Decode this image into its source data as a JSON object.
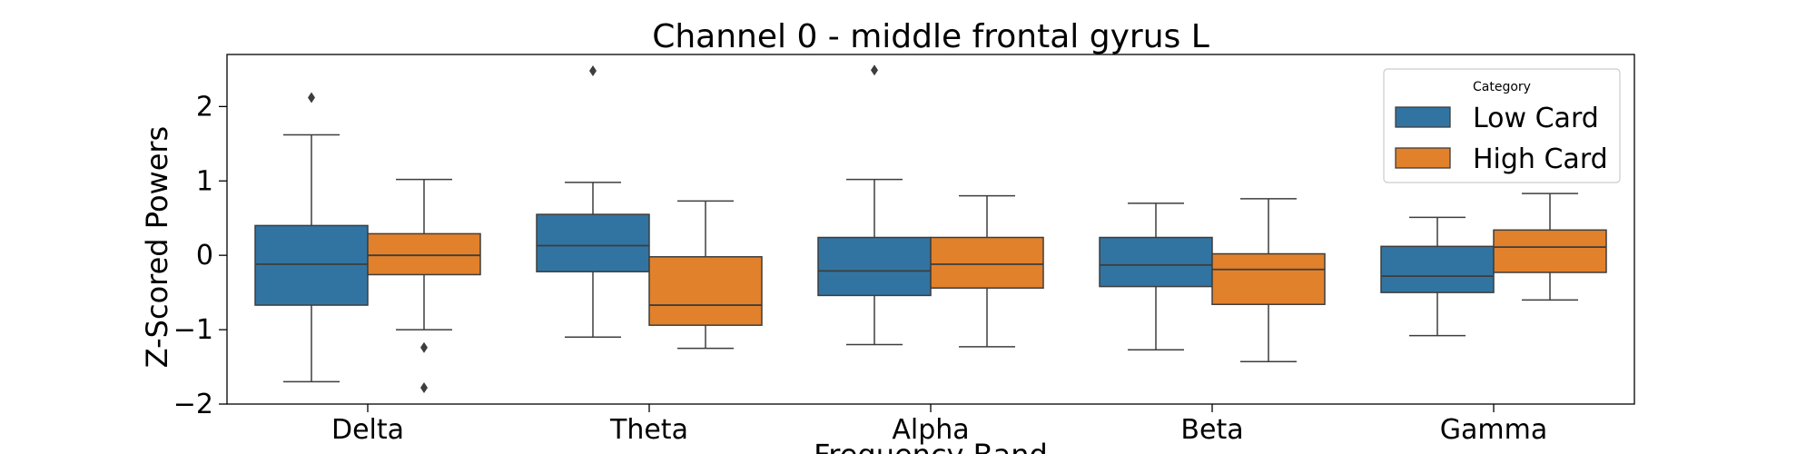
{
  "chart_data": {
    "type": "boxplot",
    "title": "Channel 0 - middle frontal gyrus L",
    "xlabel": "Frequency Band",
    "ylabel": "Z-Scored Powers",
    "ylim": [
      -2,
      2.7
    ],
    "yticks": [
      2,
      1,
      0,
      -1,
      -2
    ],
    "ytick_labels": [
      "2",
      "1",
      "0",
      "−1",
      "−2"
    ],
    "categories": [
      "Delta",
      "Theta",
      "Alpha",
      "Beta",
      "Gamma"
    ],
    "legend": {
      "title": "Category",
      "placement": "top-right",
      "entries": [
        "Low Card",
        "High Card"
      ]
    },
    "series": [
      {
        "name": "Low Card",
        "color": "#3274a1",
        "boxes": [
          {
            "whislo": -1.7,
            "q1": -0.67,
            "med": -0.12,
            "q3": 0.4,
            "whishi": 1.62,
            "fliers": [
              2.12
            ]
          },
          {
            "whislo": -1.1,
            "q1": -0.22,
            "med": 0.13,
            "q3": 0.55,
            "whishi": 0.98,
            "fliers": [
              2.48
            ]
          },
          {
            "whislo": -1.2,
            "q1": -0.54,
            "med": -0.21,
            "q3": 0.24,
            "whishi": 1.02,
            "fliers": [
              2.49
            ]
          },
          {
            "whislo": -1.27,
            "q1": -0.42,
            "med": -0.13,
            "q3": 0.24,
            "whishi": 0.7,
            "fliers": []
          },
          {
            "whislo": -1.08,
            "q1": -0.5,
            "med": -0.28,
            "q3": 0.12,
            "whishi": 0.51,
            "fliers": []
          }
        ]
      },
      {
        "name": "High Card",
        "color": "#e1812c",
        "boxes": [
          {
            "whislo": -1.0,
            "q1": -0.26,
            "med": 0.0,
            "q3": 0.29,
            "whishi": 1.02,
            "fliers": [
              -1.24,
              -1.78
            ]
          },
          {
            "whislo": -1.25,
            "q1": -0.94,
            "med": -0.67,
            "q3": -0.02,
            "whishi": 0.73,
            "fliers": []
          },
          {
            "whislo": -1.23,
            "q1": -0.44,
            "med": -0.12,
            "q3": 0.24,
            "whishi": 0.8,
            "fliers": []
          },
          {
            "whislo": -1.43,
            "q1": -0.66,
            "med": -0.19,
            "q3": 0.02,
            "whishi": 0.76,
            "fliers": []
          },
          {
            "whislo": -0.6,
            "q1": -0.23,
            "med": 0.11,
            "q3": 0.34,
            "whishi": 0.83,
            "fliers": []
          }
        ]
      }
    ]
  }
}
